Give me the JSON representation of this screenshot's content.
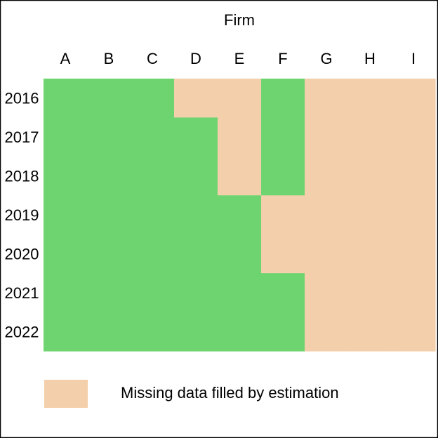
{
  "chart_data": {
    "type": "heatmap",
    "x_axis_title": "Firm",
    "x": [
      "A",
      "B",
      "C",
      "D",
      "E",
      "F",
      "G",
      "H",
      "I"
    ],
    "y": [
      "2016",
      "2017",
      "2018",
      "2019",
      "2020",
      "2021",
      "2022"
    ],
    "values": [
      [
        0,
        0,
        0,
        1,
        1,
        0,
        1,
        1,
        1
      ],
      [
        0,
        0,
        0,
        0,
        1,
        0,
        1,
        1,
        1
      ],
      [
        0,
        0,
        0,
        0,
        1,
        0,
        1,
        1,
        1
      ],
      [
        0,
        0,
        0,
        0,
        0,
        1,
        1,
        1,
        1
      ],
      [
        0,
        0,
        0,
        0,
        0,
        1,
        1,
        1,
        1
      ],
      [
        0,
        0,
        0,
        0,
        0,
        0,
        1,
        1,
        1
      ],
      [
        0,
        0,
        0,
        0,
        0,
        0,
        1,
        1,
        1
      ]
    ],
    "value_meaning": {
      "0": "",
      "1": "Missing data filled by estimation"
    },
    "colors": {
      "observed": "#6dd46f",
      "estimated": "#f3d0ab"
    },
    "legend": {
      "label": "Missing data filled by estimation",
      "placement": "bottom"
    },
    "grid": false
  }
}
